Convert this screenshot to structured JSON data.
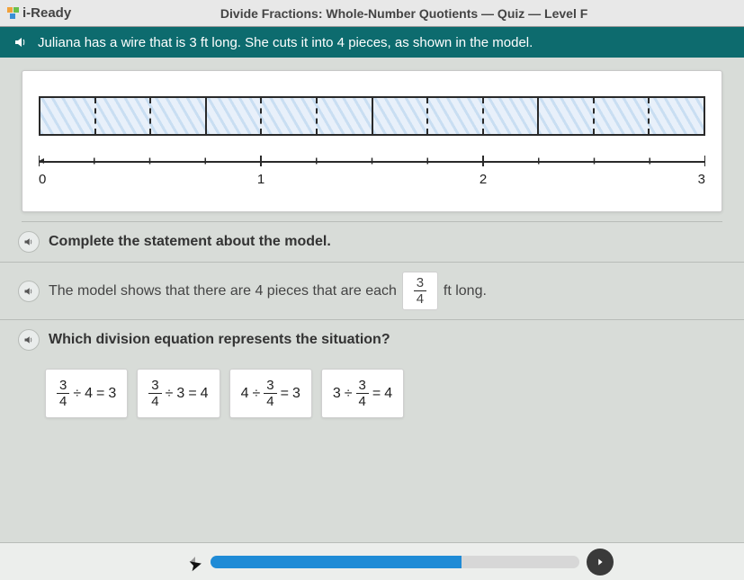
{
  "header": {
    "logo_text": "i-Ready",
    "logo_colors": [
      "#f2a13a",
      "#6bbf4a",
      "#3a8fd6"
    ],
    "title": "Divide Fractions: Whole-Number Quotients — Quiz — Level F"
  },
  "question": {
    "text": "Juliana has a wire that is 3 ft long. She cuts it into 4 pieces, as shown in the model."
  },
  "model": {
    "total_length": 3,
    "pieces": 4,
    "sub_per_piece": 3,
    "fill_pattern_color_a": "#c9def2",
    "fill_pattern_color_b": "#e8f0fa",
    "border_color": "#2a2a2a",
    "number_line": {
      "min": 0,
      "max": 3,
      "major_ticks": [
        0,
        1,
        2,
        3
      ],
      "minor_per_major": 4
    }
  },
  "prompts": {
    "complete": "Complete the statement about the model.",
    "statement_pre": "The model shows that there are 4 pieces that are each",
    "statement_post": "ft long.",
    "answer_frac": {
      "num": "3",
      "den": "4"
    },
    "which": "Which division equation represents the situation?"
  },
  "choices": [
    {
      "lhs_frac": {
        "num": "3",
        "den": "4"
      },
      "op": "÷",
      "mid": "4",
      "eq": "=",
      "rhs": "3"
    },
    {
      "lhs_frac": {
        "num": "3",
        "den": "4"
      },
      "op": "÷",
      "mid": "3",
      "eq": "=",
      "rhs": "4"
    },
    {
      "lhs": "4",
      "op": "÷",
      "mid_frac": {
        "num": "3",
        "den": "4"
      },
      "eq": "=",
      "rhs": "3"
    },
    {
      "lhs": "3",
      "op": "÷",
      "mid_frac": {
        "num": "3",
        "den": "4"
      },
      "eq": "=",
      "rhs": "4"
    }
  ],
  "footer": {
    "progress_pct": 68
  },
  "colors": {
    "teal": "#0d6b6e",
    "panel_bg": "#ffffff",
    "page_bg": "#d8dcd8",
    "progress_fill": "#1f8bd6"
  }
}
